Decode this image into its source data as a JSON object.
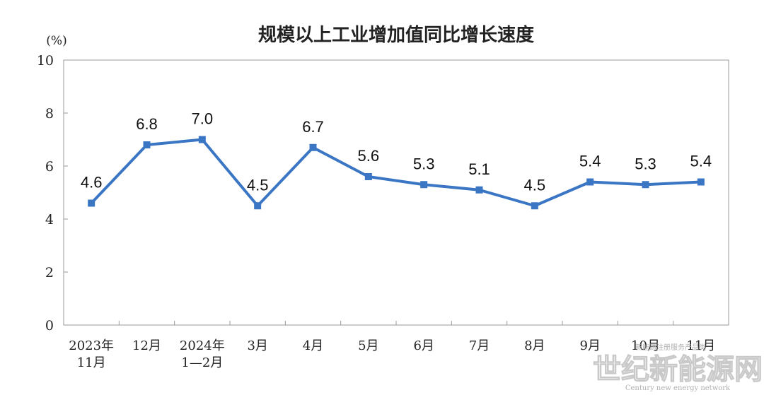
{
  "chart_data": {
    "type": "line",
    "title": "规模以上工业增加值同比增长速度",
    "unit_label": "(%)",
    "categories": [
      [
        "2023年",
        "11月"
      ],
      [
        "12月"
      ],
      [
        "2024年",
        "1—2月"
      ],
      [
        "3月"
      ],
      [
        "4月"
      ],
      [
        "5月"
      ],
      [
        "6月"
      ],
      [
        "7月"
      ],
      [
        "8月"
      ],
      [
        "9月"
      ],
      [
        "10月"
      ],
      [
        "11月"
      ]
    ],
    "values": [
      4.6,
      6.8,
      7.0,
      4.5,
      6.7,
      5.6,
      5.3,
      5.1,
      4.5,
      5.4,
      5.3,
      5.4
    ],
    "data_labels": [
      "4.6",
      "6.8",
      "7.0",
      "4.5",
      "6.7",
      "5.6",
      "5.3",
      "5.1",
      "4.5",
      "5.4",
      "5.3",
      "5.4"
    ],
    "ylim": [
      0,
      10
    ],
    "yticks": [
      "0",
      "2",
      "4",
      "6",
      "8",
      "10"
    ],
    "grid": false,
    "line_color": "#3a76c4"
  },
  "watermark": {
    "main_text": "世纪新能源网",
    "sub_text": "Century new energy network",
    "overlay_text": "新能源注册服务产品类"
  }
}
